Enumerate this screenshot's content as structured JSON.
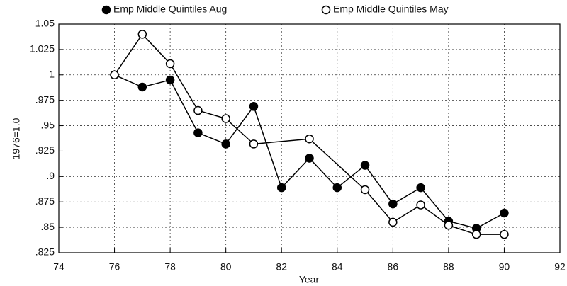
{
  "chart_data": {
    "type": "line",
    "x_label": "Year",
    "y_label": "1976=1.0",
    "xlim": [
      74,
      92
    ],
    "xticks": [
      74,
      76,
      78,
      80,
      82,
      84,
      86,
      88,
      90,
      92
    ],
    "ylim": [
      0.825,
      1.05
    ],
    "yticks": [
      {
        "value": 0.825,
        "label": ".825"
      },
      {
        "value": 0.85,
        "label": ".85"
      },
      {
        "value": 0.875,
        "label": ".875"
      },
      {
        "value": 0.9,
        "label": ".9"
      },
      {
        "value": 0.925,
        "label": ".925"
      },
      {
        "value": 0.95,
        "label": ".95"
      },
      {
        "value": 0.975,
        "label": ".975"
      },
      1,
      1.025,
      1.05
    ],
    "grid": true,
    "series": [
      {
        "name": "Emp Middle Quintiles Aug",
        "color": "#000000",
        "filled": true,
        "x": [
          76,
          77,
          78,
          79,
          80,
          81,
          82,
          83,
          84,
          85,
          86,
          87,
          88,
          89,
          90
        ],
        "values": [
          1.0,
          0.988,
          0.995,
          0.943,
          0.932,
          0.969,
          0.889,
          0.918,
          0.889,
          0.911,
          0.873,
          0.889,
          0.856,
          0.849,
          0.864
        ]
      },
      {
        "name": "Emp Middle Quintiles May",
        "color": "#000000",
        "filled": false,
        "x": [
          76,
          77,
          78,
          79,
          80,
          81,
          83,
          85,
          86,
          87,
          88,
          89,
          90
        ],
        "values": [
          1.0,
          1.04,
          1.011,
          0.965,
          0.957,
          0.932,
          0.937,
          0.887,
          0.855,
          0.872,
          0.852,
          0.843,
          0.843
        ]
      }
    ]
  }
}
